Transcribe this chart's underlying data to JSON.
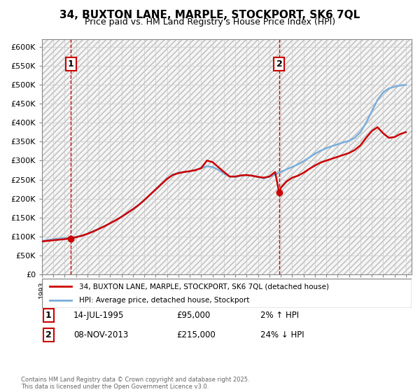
{
  "title": "34, BUXTON LANE, MARPLE, STOCKPORT, SK6 7QL",
  "subtitle": "Price paid vs. HM Land Registry's House Price Index (HPI)",
  "legend_line1": "34, BUXTON LANE, MARPLE, STOCKPORT, SK6 7QL (detached house)",
  "legend_line2": "HPI: Average price, detached house, Stockport",
  "footer": "Contains HM Land Registry data © Crown copyright and database right 2025.\nThis data is licensed under the Open Government Licence v3.0.",
  "point1_label": "1",
  "point1_date": "14-JUL-1995",
  "point1_price": "£95,000",
  "point1_hpi": "2% ↑ HPI",
  "point1_year": 1995.54,
  "point1_value": 95000,
  "point2_label": "2",
  "point2_date": "08-NOV-2013",
  "point2_price": "£215,000",
  "point2_hpi": "24% ↓ HPI",
  "point2_year": 2013.86,
  "point2_value": 215000,
  "ylim": [
    0,
    620000
  ],
  "xlim_start": 1993.0,
  "xlim_end": 2025.5,
  "line_color_property": "#cc0000",
  "line_color_hpi": "#7aaedb",
  "dashed_line_color": "#cc0000",
  "grid_color": "#cccccc",
  "title_fontsize": 11,
  "subtitle_fontsize": 9,
  "ytick_labels": [
    "£0",
    "£50K",
    "£100K",
    "£150K",
    "£200K",
    "£250K",
    "£300K",
    "£350K",
    "£400K",
    "£450K",
    "£500K",
    "£550K",
    "£600K"
  ],
  "ytick_values": [
    0,
    50000,
    100000,
    150000,
    200000,
    250000,
    300000,
    350000,
    400000,
    450000,
    500000,
    550000,
    600000
  ],
  "years_hpi": [
    1993.0,
    1993.2,
    1993.4,
    1993.6,
    1993.8,
    1994.0,
    1994.2,
    1994.4,
    1994.6,
    1994.8,
    1995.0,
    1995.2,
    1995.4,
    1995.6,
    1995.8,
    1996.0,
    1996.5,
    1997.0,
    1997.5,
    1998.0,
    1998.5,
    1999.0,
    1999.5,
    2000.0,
    2000.5,
    2001.0,
    2001.5,
    2002.0,
    2002.5,
    2003.0,
    2003.5,
    2004.0,
    2004.5,
    2005.0,
    2005.5,
    2006.0,
    2006.5,
    2007.0,
    2007.5,
    2008.0,
    2008.5,
    2009.0,
    2009.5,
    2010.0,
    2010.5,
    2011.0,
    2011.5,
    2012.0,
    2012.5,
    2013.0,
    2013.5,
    2014.0,
    2014.5,
    2015.0,
    2015.5,
    2016.0,
    2016.5,
    2017.0,
    2017.5,
    2018.0,
    2018.5,
    2019.0,
    2019.5,
    2020.0,
    2020.5,
    2021.0,
    2021.5,
    2022.0,
    2022.5,
    2023.0,
    2023.5,
    2024.0,
    2024.5,
    2025.0
  ],
  "hpi_values": [
    88000,
    89000,
    90000,
    91000,
    92000,
    93000,
    93500,
    94000,
    94500,
    95000,
    95500,
    96000,
    96500,
    97000,
    97500,
    99000,
    102000,
    107000,
    114000,
    120000,
    127000,
    135000,
    143000,
    152000,
    162000,
    172000,
    183000,
    196000,
    210000,
    224000,
    238000,
    252000,
    263000,
    268000,
    270000,
    272000,
    275000,
    280000,
    285000,
    283000,
    276000,
    266000,
    258000,
    257000,
    260000,
    262000,
    260000,
    257000,
    253000,
    258000,
    263000,
    270000,
    277000,
    283000,
    290000,
    298000,
    308000,
    318000,
    326000,
    333000,
    338000,
    343000,
    348000,
    352000,
    360000,
    375000,
    400000,
    430000,
    460000,
    480000,
    490000,
    495000,
    498000,
    500000
  ],
  "years_prop": [
    1993.0,
    1993.5,
    1994.0,
    1994.5,
    1995.0,
    1995.54,
    1996.0,
    1996.5,
    1997.0,
    1997.5,
    1998.0,
    1998.5,
    1999.0,
    1999.5,
    2000.0,
    2000.5,
    2001.0,
    2001.5,
    2002.0,
    2002.5,
    2003.0,
    2003.5,
    2004.0,
    2004.5,
    2005.0,
    2005.5,
    2006.0,
    2006.5,
    2007.0,
    2007.5,
    2008.0,
    2008.5,
    2009.0,
    2009.5,
    2010.0,
    2010.5,
    2011.0,
    2011.5,
    2012.0,
    2012.5,
    2013.0,
    2013.5,
    2013.86,
    2014.0,
    2014.5,
    2015.0,
    2015.5,
    2016.0,
    2016.5,
    2017.0,
    2017.5,
    2018.0,
    2018.5,
    2019.0,
    2019.5,
    2020.0,
    2020.5,
    2021.0,
    2021.5,
    2022.0,
    2022.5,
    2023.0,
    2023.5,
    2024.0,
    2024.5,
    2025.0
  ],
  "prop_values": [
    87000,
    88500,
    90000,
    91500,
    93000,
    95000,
    98000,
    102000,
    107000,
    113000,
    120000,
    127000,
    135000,
    143000,
    152000,
    162000,
    172000,
    183000,
    196000,
    210000,
    224000,
    238000,
    252000,
    262000,
    267000,
    270000,
    272000,
    275000,
    280000,
    300000,
    296000,
    283000,
    270000,
    258000,
    258000,
    261000,
    262000,
    260000,
    257000,
    255000,
    258000,
    270000,
    215000,
    228000,
    245000,
    255000,
    260000,
    268000,
    278000,
    287000,
    295000,
    300000,
    305000,
    310000,
    315000,
    320000,
    328000,
    340000,
    360000,
    378000,
    388000,
    372000,
    360000,
    362000,
    370000,
    375000
  ]
}
